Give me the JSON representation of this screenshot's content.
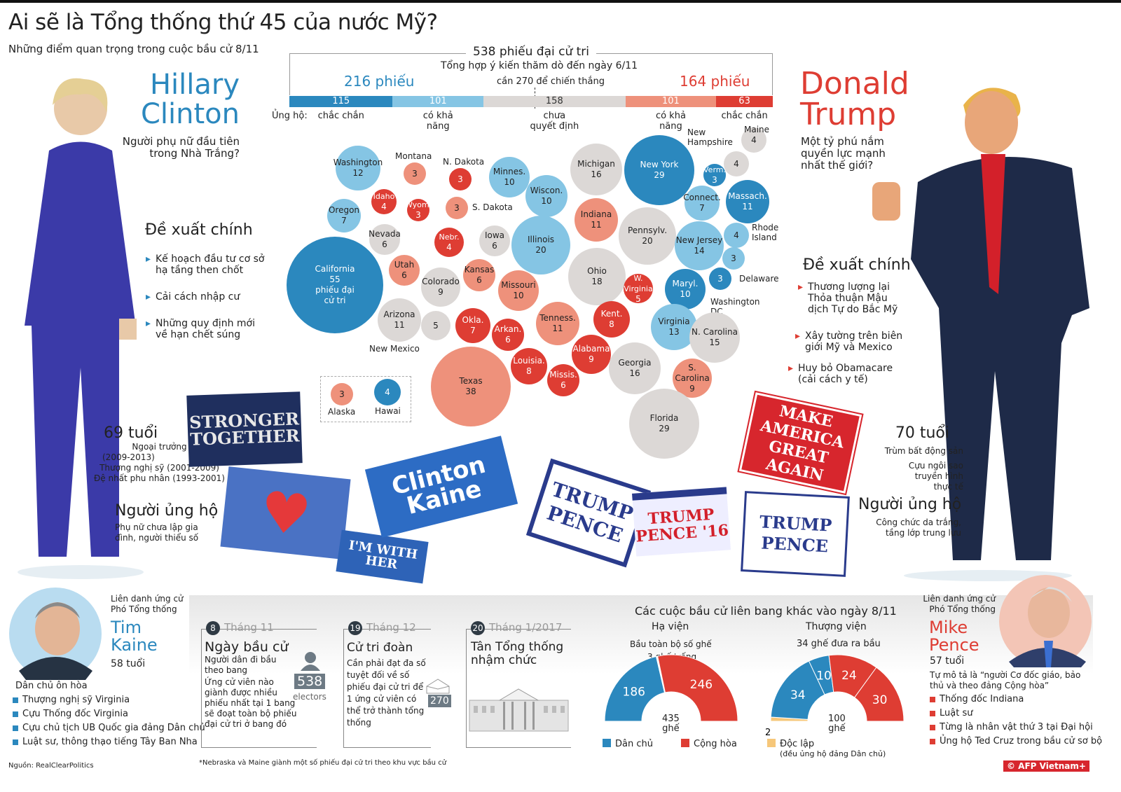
{
  "title": "Ai sẽ là Tổng thống thứ 45 của nước Mỹ?",
  "subtitle": "Những điểm quan trọng trong cuộc bầu cử 8/11",
  "colors": {
    "safe_dem": "#2b88be",
    "likely_dem": "#85c5e4",
    "tossup": "#dcd8d6",
    "likely_rep": "#ee917b",
    "safe_rep": "#de3d33",
    "independent": "#f6c77a"
  },
  "clinton": {
    "first": "Hillary",
    "last": "Clinton",
    "question": "Người phụ nữ đầu tiên trong Nhà Trắng?",
    "proposals_title": "Đề xuất chính",
    "proposals": [
      "Kế hoạch đầu tư cơ sở hạ tầng then chốt",
      "Cải cách nhập cư",
      "Những quy định mới về hạn chết súng"
    ],
    "age": "69 tuổi",
    "career": [
      "Ngoại trưởng",
      "(2009-2013)",
      "Thượng nghị sỹ (2001-2009)",
      "Đệ nhất phu nhân (1993-2001)"
    ],
    "supporters_title": "Người ủng hộ",
    "supporters": "Phụ nữ chưa lập gia đình, người thiểu số"
  },
  "trump": {
    "first": "Donald",
    "last": "Trump",
    "question": "Một tỷ phú nắm quyền lực mạnh nhất thế giới?",
    "proposals_title": "Đề xuất chính",
    "proposals": [
      "Thương lượng lại Thỏa thuận Mậu dịch Tự do Bắc Mỹ",
      "Xây tường trên biên giới Mỹ và Mexico",
      "Huy bỏ Obamacare (cải cách y tế)"
    ],
    "age": "70 tuổi",
    "career": [
      "Trùm bất động sản",
      "Cựu ngôi sao truyền hình thực tế"
    ],
    "supporters_title": "Người ủng hộ",
    "supporters": "Công chức da trắng, tầng lớp trung lưu"
  },
  "electoral": {
    "total": "538 phiếu đại cử tri",
    "subtitle": "Tổng hợp ý kiến thăm dò đến ngày 6/11",
    "dem_total": "216 phiếu",
    "rep_total": "164 phiếu",
    "threshold": "cần 270 để chiến thắng",
    "support_label": "Ủng hộ:",
    "segments": [
      {
        "value": 115,
        "label": "chắc chắn",
        "rating": "safe_dem"
      },
      {
        "value": 101,
        "label": "có khả năng",
        "rating": "likely_dem"
      },
      {
        "value": 158,
        "label": "chưa quyết định",
        "rating": "tossup"
      },
      {
        "value": 101,
        "label": "có khả năng",
        "rating": "likely_rep"
      },
      {
        "value": 63,
        "label": "chắc chắn",
        "rating": "safe_rep"
      }
    ]
  },
  "states": [
    {
      "name": "Washington",
      "votes": 12,
      "rating": "likely_dem"
    },
    {
      "name": "Montana",
      "votes": 3,
      "rating": "likely_rep"
    },
    {
      "name": "N. Dakota",
      "votes": 3,
      "rating": "safe_rep"
    },
    {
      "name": "Minnes.",
      "votes": 10,
      "rating": "likely_dem"
    },
    {
      "name": "Wiscon.",
      "votes": 10,
      "rating": "likely_dem"
    },
    {
      "name": "Michigan",
      "votes": 16,
      "rating": "tossup"
    },
    {
      "name": "New York",
      "votes": 29,
      "rating": "safe_dem"
    },
    {
      "name": "New Hampshire",
      "votes": 4,
      "rating": "tossup"
    },
    {
      "name": "Maine",
      "votes": 4,
      "rating": "tossup"
    },
    {
      "name": "Verm.",
      "votes": 3,
      "rating": "safe_dem"
    },
    {
      "name": "Massach.",
      "votes": 11,
      "rating": "safe_dem"
    },
    {
      "name": "Connect.",
      "votes": 7,
      "rating": "likely_dem"
    },
    {
      "name": "Idaho",
      "votes": 4,
      "rating": "safe_rep"
    },
    {
      "name": "Wyom.",
      "votes": 3,
      "rating": "safe_rep"
    },
    {
      "name": "S. Dakota",
      "votes": 3,
      "rating": "likely_rep"
    },
    {
      "name": "Oregon",
      "votes": 7,
      "rating": "likely_dem"
    },
    {
      "name": "Nevada",
      "votes": 6,
      "rating": "tossup"
    },
    {
      "name": "Nebr.",
      "votes": 4,
      "rating": "safe_rep"
    },
    {
      "name": "Iowa",
      "votes": 6,
      "rating": "tossup"
    },
    {
      "name": "Illinois",
      "votes": 20,
      "rating": "likely_dem"
    },
    {
      "name": "Indiana",
      "votes": 11,
      "rating": "likely_rep"
    },
    {
      "name": "Pennsylv.",
      "votes": 20,
      "rating": "tossup"
    },
    {
      "name": "New Jersey",
      "votes": 14,
      "rating": "likely_dem"
    },
    {
      "name": "Rhode Island",
      "votes": 4,
      "rating": "likely_dem"
    },
    {
      "name": "Delaware",
      "votes": 3,
      "rating": "likely_dem"
    },
    {
      "name": "Maryl.",
      "votes": 10,
      "rating": "safe_dem"
    },
    {
      "name": "Washington DC",
      "votes": 3,
      "rating": "safe_dem"
    },
    {
      "name": "California",
      "votes": 55,
      "rating": "safe_dem",
      "note": "phiếu đại cử tri"
    },
    {
      "name": "Utah",
      "votes": 6,
      "rating": "likely_rep"
    },
    {
      "name": "Colorado",
      "votes": 9,
      "rating": "tossup"
    },
    {
      "name": "Kansas",
      "votes": 6,
      "rating": "likely_rep"
    },
    {
      "name": "Missouri",
      "votes": 10,
      "rating": "likely_rep"
    },
    {
      "name": "Ohio",
      "votes": 18,
      "rating": "tossup"
    },
    {
      "name": "W. Virginia",
      "votes": 5,
      "rating": "safe_rep"
    },
    {
      "name": "Arizona",
      "votes": 11,
      "rating": "tossup"
    },
    {
      "name": "New Mexico",
      "votes": 5,
      "rating": "tossup"
    },
    {
      "name": "Okla.",
      "votes": 7,
      "rating": "safe_rep"
    },
    {
      "name": "Arkan.",
      "votes": 6,
      "rating": "safe_rep"
    },
    {
      "name": "Tenness.",
      "votes": 11,
      "rating": "likely_rep"
    },
    {
      "name": "Kent.",
      "votes": 8,
      "rating": "safe_rep"
    },
    {
      "name": "Virginia",
      "votes": 13,
      "rating": "likely_dem"
    },
    {
      "name": "N. Carolina",
      "votes": 15,
      "rating": "tossup"
    },
    {
      "name": "Texas",
      "votes": 38,
      "rating": "likely_rep"
    },
    {
      "name": "Louisia.",
      "votes": 8,
      "rating": "safe_rep"
    },
    {
      "name": "Missis.",
      "votes": 6,
      "rating": "safe_rep"
    },
    {
      "name": "Alabama",
      "votes": 9,
      "rating": "safe_rep"
    },
    {
      "name": "Georgia",
      "votes": 16,
      "rating": "tossup"
    },
    {
      "name": "S. Carolina",
      "votes": 9,
      "rating": "likely_rep"
    },
    {
      "name": "Florida",
      "votes": 29,
      "rating": "tossup"
    },
    {
      "name": "Alaska",
      "votes": 3,
      "rating": "likely_rep"
    },
    {
      "name": "Hawai",
      "votes": 4,
      "rating": "safe_dem"
    }
  ],
  "signs": {
    "stronger": "STRONGER TOGETHER",
    "clinton_kaine": "Clinton Kaine",
    "with_her": "I'M WITH HER",
    "trump_pence": "TRUMP PENCE",
    "make_america": "MAKE AMERICA GREAT AGAIN",
    "trump16": "TRUMP PENCE '16",
    "trump_pence2": "TRUMP PENCE"
  },
  "kaine": {
    "label": "Liên danh ứng cử Phó Tổng thống",
    "first": "Tim",
    "last": "Kaine",
    "age": "58 tuổi",
    "desc": "Dân chủ ôn hòa",
    "items": [
      "Thượng nghị sỹ Virginia",
      "Cựu Thống đốc Virginia",
      "Cựu chủ tịch UB Quốc gia đảng Dân chủ",
      "Luật sư, thông thạo tiếng Tây Ban Nha"
    ]
  },
  "pence": {
    "label": "Liên danh ứng cử Phó Tổng thống",
    "first": "Mike",
    "last": "Pence",
    "age": "57 tuổi",
    "desc": "Tự mô tả là “người Cơ đốc giáo, bảo thủ và theo đảng Cộng hòa”",
    "items": [
      "Thống đốc Indiana",
      "Luật sư",
      "Từng là nhân vật thứ 3 tại Đại hội",
      "Ủng hộ Ted Cruz trong bầu cử sơ bộ"
    ]
  },
  "timeline": [
    {
      "day": "8",
      "month": "Tháng 11",
      "title": "Ngày bầu cử",
      "text": [
        "Người dân đi bầu theo bang",
        "Ứng cử viên nào giành được nhiều phiếu nhất tại 1 bang sẽ đoạt toàn bộ phiếu đại cử tri ở bang đó"
      ]
    },
    {
      "day": "19",
      "month": "Tháng 12",
      "title": "Cử tri đoàn",
      "text": [
        "Cần phải đạt đa số tuyệt đối về số phiếu đại cử tri để 1 ứng cử viên có thể trở thành tổng thống"
      ]
    },
    {
      "day": "20",
      "month": "Tháng 1/2017",
      "title": "Tân Tổng thống nhậm chức",
      "text": []
    }
  ],
  "electors": {
    "value": "538",
    "label": "electors",
    "needed": "270"
  },
  "congress": {
    "title": "Các cuộc bầu cử liên bang khác vào ngày 8/11",
    "house": {
      "title": "Hạ viện",
      "note": "Bầu toàn bộ số ghế",
      "vacant": "3 ghế trống",
      "total": "435",
      "unit": "ghế",
      "seats": [
        {
          "party": "dem",
          "value": 186
        },
        {
          "party": "vacant",
          "value": 3
        },
        {
          "party": "rep",
          "value": 246
        }
      ]
    },
    "senate": {
      "title": "Thượng viện",
      "note": "34 ghế đưa ra bầu",
      "total": "100",
      "unit": "ghế",
      "seats": [
        {
          "party": "ind",
          "value": 2
        },
        {
          "party": "dem",
          "value": 34
        },
        {
          "party": "dem",
          "value": 10
        },
        {
          "party": "rep",
          "value": 24
        },
        {
          "party": "rep",
          "value": 30
        }
      ]
    },
    "legend": {
      "dem": "Dân chủ",
      "rep": "Cộng hòa",
      "ind": "Độc lập",
      "ind_note": "(đều ủng hộ đảng Dân chủ)"
    }
  },
  "source": "Nguồn: RealClearPolitics",
  "footnote": "*Nebraska và Maine giành một số phiếu đại cử tri theo khu vực bầu cử",
  "credit": "© AFP Vietnam+"
}
